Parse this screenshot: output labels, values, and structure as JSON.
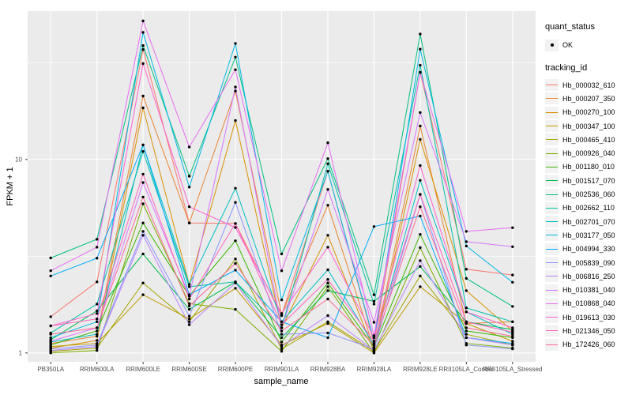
{
  "chart_data": {
    "type": "line",
    "title": "",
    "xlabel": "sample_name",
    "ylabel": "FPKM + 1",
    "y_scale": "log10",
    "ylim": [
      0.9,
      58.5
    ],
    "grid": true,
    "legend_position": "right",
    "y_major_ticks": [
      {
        "value": 1,
        "label": "1"
      },
      {
        "value": 10,
        "label": "10"
      }
    ],
    "y_minor_ticks": [
      3.1623,
      31.623
    ],
    "categories": [
      "PB350LA",
      "RRIM600LA",
      "RRIM600LE",
      "RRIM600SE",
      "RRIM600PE",
      "RRIM901LA",
      "RRIM928BA",
      "RRIM928LA",
      "RRIM928LE",
      "RRII105LA_Control",
      "RRII105LA_Stressed"
    ],
    "series": [
      {
        "name": "Hb_000032_610",
        "color": "#F8766D",
        "values": [
          1.54,
          2.33,
          37.0,
          4.7,
          4.67,
          1.56,
          8.7,
          1.12,
          28.2,
          2.71,
          2.53
        ]
      },
      {
        "name": "Hb_000207_350",
        "color": "#EA8331",
        "values": [
          1.12,
          1.22,
          21.3,
          4.7,
          22.6,
          1.58,
          5.8,
          1.05,
          14.9,
          1.42,
          1.45
        ]
      },
      {
        "name": "Hb_000270_100",
        "color": "#D89000",
        "values": [
          1.06,
          1.16,
          18.5,
          2.26,
          15.9,
          1.35,
          4.06,
          1.02,
          12.7,
          2.1,
          1.3
        ]
      },
      {
        "name": "Hb_000347_100",
        "color": "#C09B00",
        "values": [
          1.08,
          1.12,
          2.0,
          1.5,
          2.16,
          1.1,
          1.42,
          1.0,
          2.2,
          1.42,
          1.15
        ]
      },
      {
        "name": "Hb_000465_410",
        "color": "#A3A500",
        "values": [
          1.02,
          1.06,
          2.3,
          1.45,
          3.06,
          1.05,
          1.45,
          1.02,
          2.5,
          1.25,
          1.1
        ]
      },
      {
        "name": "Hb_000926_040",
        "color": "#7CAE00",
        "values": [
          1.0,
          1.03,
          5.9,
          1.8,
          1.68,
          1.02,
          2.2,
          1.0,
          3.5,
          1.12,
          1.06
        ]
      },
      {
        "name": "Hb_001180_010",
        "color": "#39B600",
        "values": [
          1.1,
          1.3,
          4.7,
          1.97,
          3.8,
          1.14,
          2.3,
          1.07,
          4.1,
          1.3,
          1.2
        ]
      },
      {
        "name": "Hb_001517_070",
        "color": "#00BB4E",
        "values": [
          1.17,
          1.65,
          3.25,
          1.68,
          2.33,
          1.2,
          2.1,
          1.85,
          2.8,
          1.45,
          1.32
        ]
      },
      {
        "name": "Hb_002536_060",
        "color": "#00C07F",
        "values": [
          3.1,
          3.87,
          38.8,
          8.2,
          33.8,
          3.25,
          10.1,
          2.0,
          44.5,
          2.43,
          1.74
        ]
      },
      {
        "name": "Hb_002662_110",
        "color": "#00C1A7",
        "values": [
          1.27,
          1.79,
          11.0,
          2.2,
          2.33,
          1.35,
          9.5,
          1.79,
          30.7,
          1.71,
          1.45
        ]
      },
      {
        "name": "Hb_002701_070",
        "color": "#00BFC4",
        "values": [
          1.14,
          1.25,
          11.9,
          2.26,
          7.1,
          1.45,
          2.69,
          1.1,
          7.8,
          1.63,
          1.25
        ]
      },
      {
        "name": "Hb_003177_050",
        "color": "#00B8E5",
        "values": [
          1.2,
          1.45,
          45.4,
          7.2,
          39.8,
          1.88,
          8.7,
          1.15,
          37.2,
          3.57,
          2.32
        ]
      },
      {
        "name": "Hb_004994_330",
        "color": "#00ACFC",
        "values": [
          2.5,
          3.09,
          11.9,
          2.0,
          2.68,
          1.45,
          1.2,
          4.5,
          5.1,
          1.2,
          1.12
        ]
      },
      {
        "name": "Hb_005839_090",
        "color": "#8B93FF",
        "values": [
          1.05,
          1.1,
          4.25,
          1.55,
          6.0,
          1.25,
          1.27,
          1.05,
          6.6,
          1.1,
          1.05
        ]
      },
      {
        "name": "Hb_006816_250",
        "color": "#B983FF",
        "values": [
          1.03,
          1.08,
          4.06,
          1.4,
          2.3,
          1.08,
          1.56,
          1.03,
          3.0,
          1.2,
          1.1
        ]
      },
      {
        "name": "Hb_010381_040",
        "color": "#D575FE",
        "values": [
          1.15,
          1.35,
          7.6,
          1.97,
          23.7,
          1.35,
          7.0,
          1.44,
          17.5,
          3.76,
          3.54
        ]
      },
      {
        "name": "Hb_010868_040",
        "color": "#E76BF3",
        "values": [
          2.66,
          3.52,
          52.0,
          11.6,
          29.1,
          2.66,
          12.2,
          1.23,
          28.2,
          4.25,
          4.44
        ]
      },
      {
        "name": "Hb_019613_030",
        "color": "#FD61D1",
        "values": [
          1.38,
          1.6,
          31.3,
          5.7,
          4.45,
          1.6,
          3.52,
          1.2,
          9.3,
          1.63,
          1.35
        ]
      },
      {
        "name": "Hb_021346_050",
        "color": "#FF62BC",
        "values": [
          1.38,
          1.5,
          8.4,
          1.9,
          4.67,
          1.4,
          2.4,
          1.15,
          6.6,
          1.45,
          1.28
        ]
      },
      {
        "name": "Hb_172426_060",
        "color": "#FF6A98",
        "values": [
          1.25,
          1.35,
          6.4,
          1.75,
          2.9,
          1.3,
          1.9,
          1.1,
          5.7,
          1.35,
          1.22
        ]
      }
    ]
  },
  "legend": {
    "quant_status_title": "quant_status",
    "quant_status_items": [
      {
        "label": "OK",
        "symbol": "point"
      }
    ],
    "tracking_id_title": "tracking_id"
  },
  "colors": {
    "panel_bg": "#EBEBEB",
    "grid": "#FFFFFF",
    "axis_text": "#4D4D4D",
    "tick_mark": "#333333",
    "point": "#000000",
    "legend_key_bg": "#F2F2F2"
  }
}
